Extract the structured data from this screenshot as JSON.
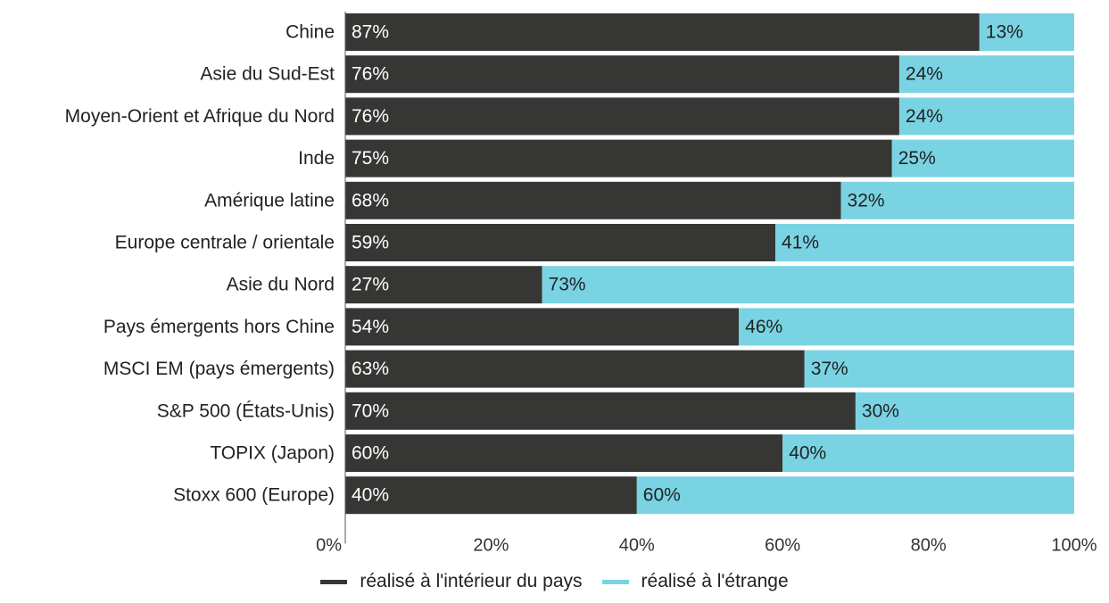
{
  "colors": {
    "domestic": "#363734",
    "foreign": "#79d3e3",
    "axis": "#555555"
  },
  "legend": {
    "domestic_label": "réalisé à l'intérieur du pays",
    "foreign_label": "réalisé à l'étrange"
  },
  "chart_data": {
    "type": "bar",
    "orientation": "horizontal",
    "stacked": true,
    "categories": [
      "Chine",
      "Asie du Sud-Est",
      "Moyen-Orient et Afrique du Nord",
      "Inde",
      "Amérique latine",
      "Europe centrale / orientale",
      "Asie du Nord",
      "Pays émergents hors Chine",
      "MSCI EM (pays émergents)",
      "S&P 500 (États-Unis)",
      "TOPIX (Japon)",
      "Stoxx 600 (Europe)"
    ],
    "series": [
      {
        "name": "réalisé à l'intérieur du pays",
        "values": [
          87,
          76,
          76,
          75,
          68,
          59,
          27,
          54,
          63,
          70,
          60,
          40
        ],
        "labels": [
          "87%",
          "76%",
          "76%",
          "75%",
          "68%",
          "59%",
          "27%",
          "54%",
          "63%",
          "70%",
          "60%",
          "40%"
        ]
      },
      {
        "name": "réalisé à l'étrange",
        "values": [
          13,
          24,
          24,
          25,
          32,
          41,
          73,
          46,
          37,
          30,
          40,
          60
        ],
        "labels": [
          "13%",
          "24%",
          "24%",
          "25%",
          "32%",
          "41%",
          "73%",
          "46%",
          "37%",
          "30%",
          "40%",
          "60%"
        ]
      }
    ],
    "x_ticks": [
      0,
      20,
      40,
      60,
      80,
      100
    ],
    "x_tick_labels": [
      "0%",
      "20%",
      "40%",
      "60%",
      "80%",
      "100%"
    ],
    "xlim": [
      0,
      100
    ],
    "grid": false,
    "legend_position": "bottom"
  }
}
